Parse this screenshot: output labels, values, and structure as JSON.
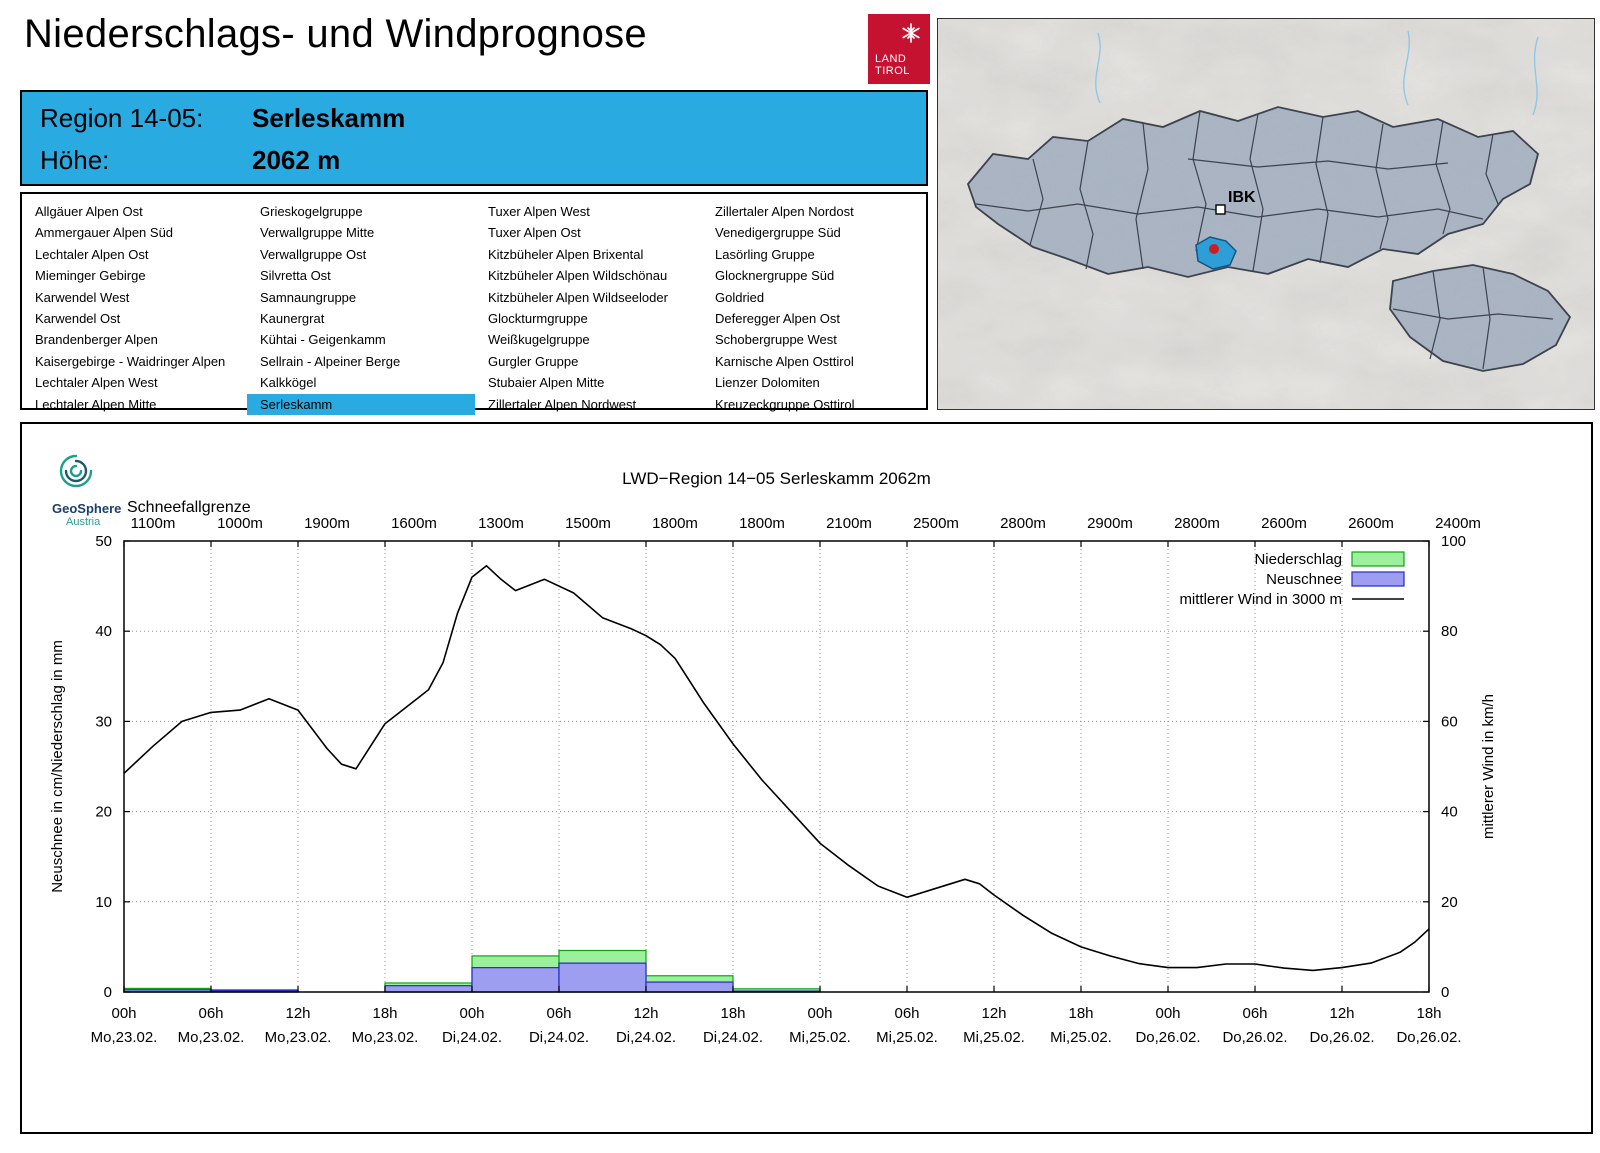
{
  "page": {
    "title": "Niederschlags- und Windprognose"
  },
  "logo": {
    "line1": "LAND",
    "line2": "TIROL"
  },
  "region_info": {
    "region_label": "Region 14-05:",
    "region_value": "Serleskamm",
    "altitude_label": "Höhe:",
    "altitude_value": "2062 m",
    "accent_color": "#29ABE2"
  },
  "region_list": {
    "selected": "Serleskamm",
    "columns": [
      [
        "Allgäuer Alpen Ost",
        "Ammergauer Alpen Süd",
        "Lechtaler Alpen Ost",
        "Mieminger Gebirge",
        "Karwendel West",
        "Karwendel Ost",
        "Brandenberger Alpen",
        "Kaisergebirge - Waidringer Alpen",
        "Lechtaler Alpen West",
        "Lechtaler Alpen Mitte"
      ],
      [
        "Grieskogelgruppe",
        "Verwallgruppe Mitte",
        "Verwallgruppe Ost",
        "Silvretta Ost",
        "Samnaungruppe",
        "Kaunergrat",
        "Kühtai - Geigenkamm",
        "Sellrain - Alpeiner Berge",
        "Kalkkögel",
        "Serleskamm"
      ],
      [
        "Tuxer Alpen West",
        "Tuxer Alpen Ost",
        "Kitzbüheler Alpen Brixental",
        "Kitzbüheler Alpen Wildschönau",
        "Kitzbüheler Alpen Wildseeloder",
        "Glockturmgruppe",
        "Weißkugelgruppe",
        "Gurgler Gruppe",
        "Stubaier Alpen Mitte",
        "Zillertaler Alpen Nordwest"
      ],
      [
        "Zillertaler Alpen Nordost",
        "Venedigergruppe Süd",
        "Lasörling Gruppe",
        "Glocknergruppe Süd",
        "Goldried",
        "Deferegger Alpen Ost",
        "Schobergruppe West",
        "Karnische Alpen Osttirol",
        "Lienzer Dolomiten",
        "Kreuzeckgruppe Osttirol"
      ]
    ]
  },
  "map": {
    "city_label": "IBK",
    "region_fill": "#a9b4c3",
    "highlight_fill": "#2e9fd6",
    "marker_color": "#cc2020"
  },
  "geosphere": {
    "name": "GeoSphere",
    "country": "Austria"
  },
  "chart_data": {
    "type": "line+bar",
    "title": "LWD−Region 14−05 Serleskamm 2062m",
    "snowline_label": "Schneefallgrenze",
    "snowline_values": [
      "1100m",
      "1000m",
      "1900m",
      "1600m",
      "1300m",
      "1500m",
      "1800m",
      "1800m",
      "2100m",
      "2500m",
      "2800m",
      "2900m",
      "2800m",
      "2600m",
      "2600m",
      "2400m"
    ],
    "ylabel_left": "Neuschnee in cm/Niederschlag in mm",
    "ylabel_right": "mittlerer Wind in km/h",
    "ylim_left": [
      0,
      50
    ],
    "ylim_right": [
      0,
      100
    ],
    "grid": true,
    "legend_position": "top-right",
    "x_hours_total": 90,
    "x_ticks": [
      {
        "hour": "00h",
        "date": "Mo,23.02."
      },
      {
        "hour": "06h",
        "date": "Mo,23.02."
      },
      {
        "hour": "12h",
        "date": "Mo,23.02."
      },
      {
        "hour": "18h",
        "date": "Mo,23.02."
      },
      {
        "hour": "00h",
        "date": "Di,24.02."
      },
      {
        "hour": "06h",
        "date": "Di,24.02."
      },
      {
        "hour": "12h",
        "date": "Di,24.02."
      },
      {
        "hour": "18h",
        "date": "Di,24.02."
      },
      {
        "hour": "00h",
        "date": "Mi,25.02."
      },
      {
        "hour": "06h",
        "date": "Mi,25.02."
      },
      {
        "hour": "12h",
        "date": "Mi,25.02."
      },
      {
        "hour": "18h",
        "date": "Mi,25.02."
      },
      {
        "hour": "00h",
        "date": "Do,26.02."
      },
      {
        "hour": "06h",
        "date": "Do,26.02."
      },
      {
        "hour": "12h",
        "date": "Do,26.02."
      },
      {
        "hour": "18h",
        "date": "Do,26.02."
      }
    ],
    "legend": [
      {
        "label": "Niederschlag",
        "type": "box",
        "color": "#9cf09c",
        "border": "#0fa30f"
      },
      {
        "label": "Neuschnee",
        "type": "box",
        "color": "#9e9ef0",
        "border": "#2727cc"
      },
      {
        "label": "mittlerer Wind in 3000 m",
        "type": "line",
        "color": "#000000"
      }
    ],
    "colors": {
      "niederschlag_fill": "#9cf09c",
      "niederschlag_border": "#0fa30f",
      "neuschnee_fill": "#9e9ef0",
      "neuschnee_border": "#2727cc",
      "wind_line": "#000000"
    },
    "bars": {
      "block_hours": 6,
      "unit_niederschlag": "mm",
      "unit_neuschnee": "cm",
      "niederschlag": [
        0.4,
        0.25,
        0,
        1.0,
        4.0,
        4.6,
        1.8,
        0.35,
        0,
        0,
        0,
        0,
        0,
        0,
        0
      ],
      "neuschnee": [
        0.25,
        0.15,
        0,
        0.7,
        2.7,
        3.2,
        1.1,
        0.1,
        0,
        0,
        0,
        0,
        0,
        0,
        0
      ]
    },
    "wind_line": {
      "name": "mittlerer Wind in 3000 m",
      "unit": "km/h",
      "axis": "right",
      "points": [
        [
          0,
          48.5
        ],
        [
          2,
          54.5
        ],
        [
          4,
          60
        ],
        [
          6,
          62
        ],
        [
          8,
          62.5
        ],
        [
          10,
          65
        ],
        [
          12,
          62.5
        ],
        [
          14,
          54
        ],
        [
          15,
          50.5
        ],
        [
          16,
          49.5
        ],
        [
          18,
          59.5
        ],
        [
          20,
          64.5
        ],
        [
          21,
          67
        ],
        [
          22,
          73
        ],
        [
          23,
          84
        ],
        [
          24,
          92
        ],
        [
          25,
          94.5
        ],
        [
          26,
          91.5
        ],
        [
          27,
          89
        ],
        [
          29,
          91.5
        ],
        [
          31,
          88.5
        ],
        [
          33,
          83
        ],
        [
          35,
          80.5
        ],
        [
          36,
          79
        ],
        [
          37,
          77
        ],
        [
          38,
          74
        ],
        [
          39,
          69
        ],
        [
          40,
          64
        ],
        [
          42,
          55
        ],
        [
          44,
          47
        ],
        [
          46,
          40
        ],
        [
          48,
          33
        ],
        [
          50,
          28
        ],
        [
          52,
          23.5
        ],
        [
          54,
          21
        ],
        [
          56,
          23
        ],
        [
          58,
          25
        ],
        [
          59,
          24
        ],
        [
          60,
          21.5
        ],
        [
          62,
          17
        ],
        [
          64,
          13
        ],
        [
          66,
          10
        ],
        [
          68,
          8
        ],
        [
          70,
          6.3
        ],
        [
          72,
          5.4
        ],
        [
          74,
          5.4
        ],
        [
          76,
          6.2
        ],
        [
          78,
          6.2
        ],
        [
          80,
          5.3
        ],
        [
          82,
          4.8
        ],
        [
          84,
          5.4
        ],
        [
          86,
          6.4
        ],
        [
          88,
          8.8
        ],
        [
          89,
          11
        ],
        [
          90,
          14
        ]
      ]
    }
  }
}
